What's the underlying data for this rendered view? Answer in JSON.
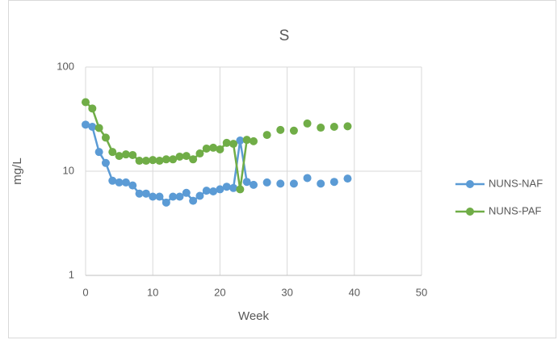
{
  "chart_data": {
    "type": "line",
    "title": "S",
    "xlabel": "Week",
    "ylabel": "mg/L",
    "x": [
      0,
      1,
      2,
      3,
      4,
      5,
      6,
      7,
      8,
      9,
      10,
      11,
      12,
      13,
      14,
      15,
      16,
      17,
      18,
      19,
      20,
      21,
      22,
      23,
      24,
      25,
      26,
      27,
      28,
      29,
      30,
      31,
      32,
      33,
      34,
      35,
      36,
      37,
      38,
      39
    ],
    "series": [
      {
        "name": "NUNS-NAF",
        "color": "#5b9bd5",
        "values": [
          28,
          26.7,
          15.3,
          12,
          8.1,
          7.8,
          7.8,
          7.3,
          6.1,
          6.1,
          5.7,
          5.7,
          5.0,
          5.7,
          5.7,
          6.2,
          5.2,
          5.8,
          6.5,
          6.4,
          6.7,
          7.1,
          6.9,
          19.7,
          7.9,
          7.4,
          null,
          7.8,
          null,
          7.6,
          null,
          7.6,
          null,
          8.6,
          null,
          7.6,
          null,
          7.9,
          null,
          8.5
        ]
      },
      {
        "name": "NUNS-PAF",
        "color": "#70ad47",
        "values": [
          46,
          40,
          26,
          21,
          15.3,
          14,
          14.5,
          14.3,
          12.6,
          12.6,
          12.8,
          12.6,
          13,
          13,
          13.8,
          14,
          13,
          14.8,
          16.5,
          16.8,
          16.2,
          18.7,
          18.3,
          6.7,
          20,
          19.4,
          null,
          22.3,
          null,
          24.9,
          null,
          24.5,
          null,
          28.7,
          null,
          26.2,
          null,
          26.7,
          null,
          27
        ]
      }
    ],
    "xlim": [
      0,
      50
    ],
    "xticks": [
      0,
      10,
      20,
      30,
      40,
      50
    ],
    "ylim": [
      1,
      100
    ],
    "yticks": [
      1,
      10,
      100
    ],
    "yscale": "log",
    "grid": true,
    "legend": "right"
  }
}
